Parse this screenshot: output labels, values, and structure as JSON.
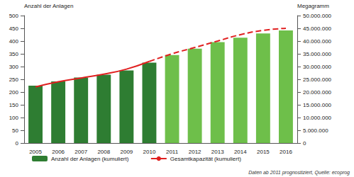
{
  "chart_data": {
    "type": "bar",
    "categories": [
      "2005",
      "2006",
      "2007",
      "2008",
      "2009",
      "2010",
      "2011",
      "2012",
      "2013",
      "2014",
      "2015",
      "2016"
    ],
    "series": [
      {
        "name": "Anzahl der Anlagen (kumuliert)",
        "type": "bar",
        "color": "#2e7d32",
        "colors": [
          "#2e7d32",
          "#2e7d32",
          "#2e7d32",
          "#2e7d32",
          "#2e7d32",
          "#2e7d32",
          "#6ebf4a",
          "#6ebf4a",
          "#6ebf4a",
          "#6ebf4a",
          "#6ebf4a",
          "#6ebf4a"
        ],
        "values": [
          225,
          242,
          257,
          268,
          285,
          315,
          345,
          370,
          396,
          413,
          430,
          442
        ]
      },
      {
        "name": "Gesamtkapazität (kumuliert)",
        "type": "line",
        "axis": "y2",
        "color": "#e02020",
        "line_style": "solid",
        "values": [
          22000000,
          24000000,
          25500000,
          27000000,
          29000000,
          32000000,
          null,
          null,
          null,
          null,
          null,
          null
        ]
      },
      {
        "type": "line",
        "axis": "y2",
        "color": "#e02020",
        "line_style": "dashed",
        "values": [
          null,
          null,
          null,
          null,
          null,
          32000000,
          35000000,
          37500000,
          40000000,
          42500000,
          44200000,
          45000000
        ]
      }
    ],
    "y_label": "Anzahl der Anlagen",
    "y2_label": "Megagramm",
    "ylim": [
      0,
      500
    ],
    "yticks": [
      0,
      50,
      100,
      150,
      200,
      250,
      300,
      350,
      400,
      450,
      500
    ],
    "y2lim": [
      0,
      50000000
    ],
    "y2ticks": [
      0,
      {
        "value": 5000000,
        "label": "5.000.000"
      },
      {
        "value": 10000000,
        "label": "10.000.000"
      },
      {
        "value": 15000000,
        "label": "15.000.000"
      },
      {
        "value": 20000000,
        "label": "20.000.000"
      },
      {
        "value": 25000000,
        "label": "25.000.000"
      },
      {
        "value": 30000000,
        "label": "30.000.000"
      },
      {
        "value": 35000000,
        "label": "35.000.000"
      },
      {
        "value": 40000000,
        "label": "40.000.000"
      },
      {
        "value": 45000000,
        "label": "45.000.000"
      },
      {
        "value": 50000000,
        "label": "50.000.000"
      }
    ],
    "annotations": [
      "Daten ab 2011 prognostiziert, Quelle: ecoprog"
    ],
    "grid": false,
    "legend": "bottom"
  }
}
